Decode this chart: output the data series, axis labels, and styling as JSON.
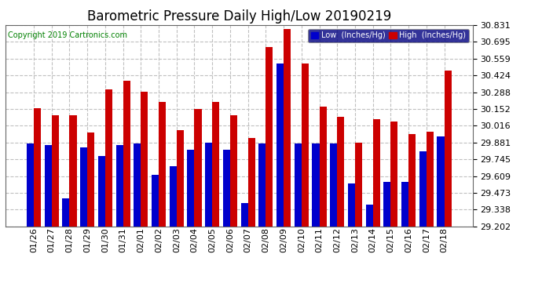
{
  "title": "Barometric Pressure Daily High/Low 20190219",
  "copyright": "Copyright 2019 Cartronics.com",
  "legend_low": "Low  (Inches/Hg)",
  "legend_high": "High  (Inches/Hg)",
  "dates": [
    "01/26",
    "01/27",
    "01/28",
    "01/29",
    "01/30",
    "01/31",
    "02/01",
    "02/02",
    "02/03",
    "02/04",
    "02/05",
    "02/06",
    "02/07",
    "02/08",
    "02/09",
    "02/10",
    "02/11",
    "02/12",
    "02/13",
    "02/14",
    "02/15",
    "02/16",
    "02/17",
    "02/18"
  ],
  "low_values": [
    29.87,
    29.86,
    29.43,
    29.84,
    29.77,
    29.86,
    29.87,
    29.62,
    29.69,
    29.82,
    29.88,
    29.82,
    29.39,
    29.87,
    30.52,
    29.87,
    29.87,
    29.87,
    29.55,
    29.38,
    29.56,
    29.56,
    29.81,
    29.93
  ],
  "high_values": [
    30.16,
    30.1,
    30.1,
    29.96,
    30.31,
    30.38,
    30.29,
    30.21,
    29.98,
    30.15,
    30.21,
    30.1,
    29.92,
    30.65,
    30.8,
    30.52,
    30.17,
    30.09,
    29.88,
    30.07,
    30.05,
    29.95,
    29.97,
    30.46
  ],
  "ylim_min": 29.202,
  "ylim_max": 30.831,
  "yticks": [
    29.202,
    29.338,
    29.473,
    29.609,
    29.745,
    29.881,
    30.016,
    30.152,
    30.288,
    30.424,
    30.559,
    30.695,
    30.831
  ],
  "low_color": "#0000cc",
  "high_color": "#cc0000",
  "bg_color": "#ffffff",
  "grid_color": "#c0c0c0",
  "title_fontsize": 12,
  "tick_fontsize": 8,
  "bar_width": 0.4
}
